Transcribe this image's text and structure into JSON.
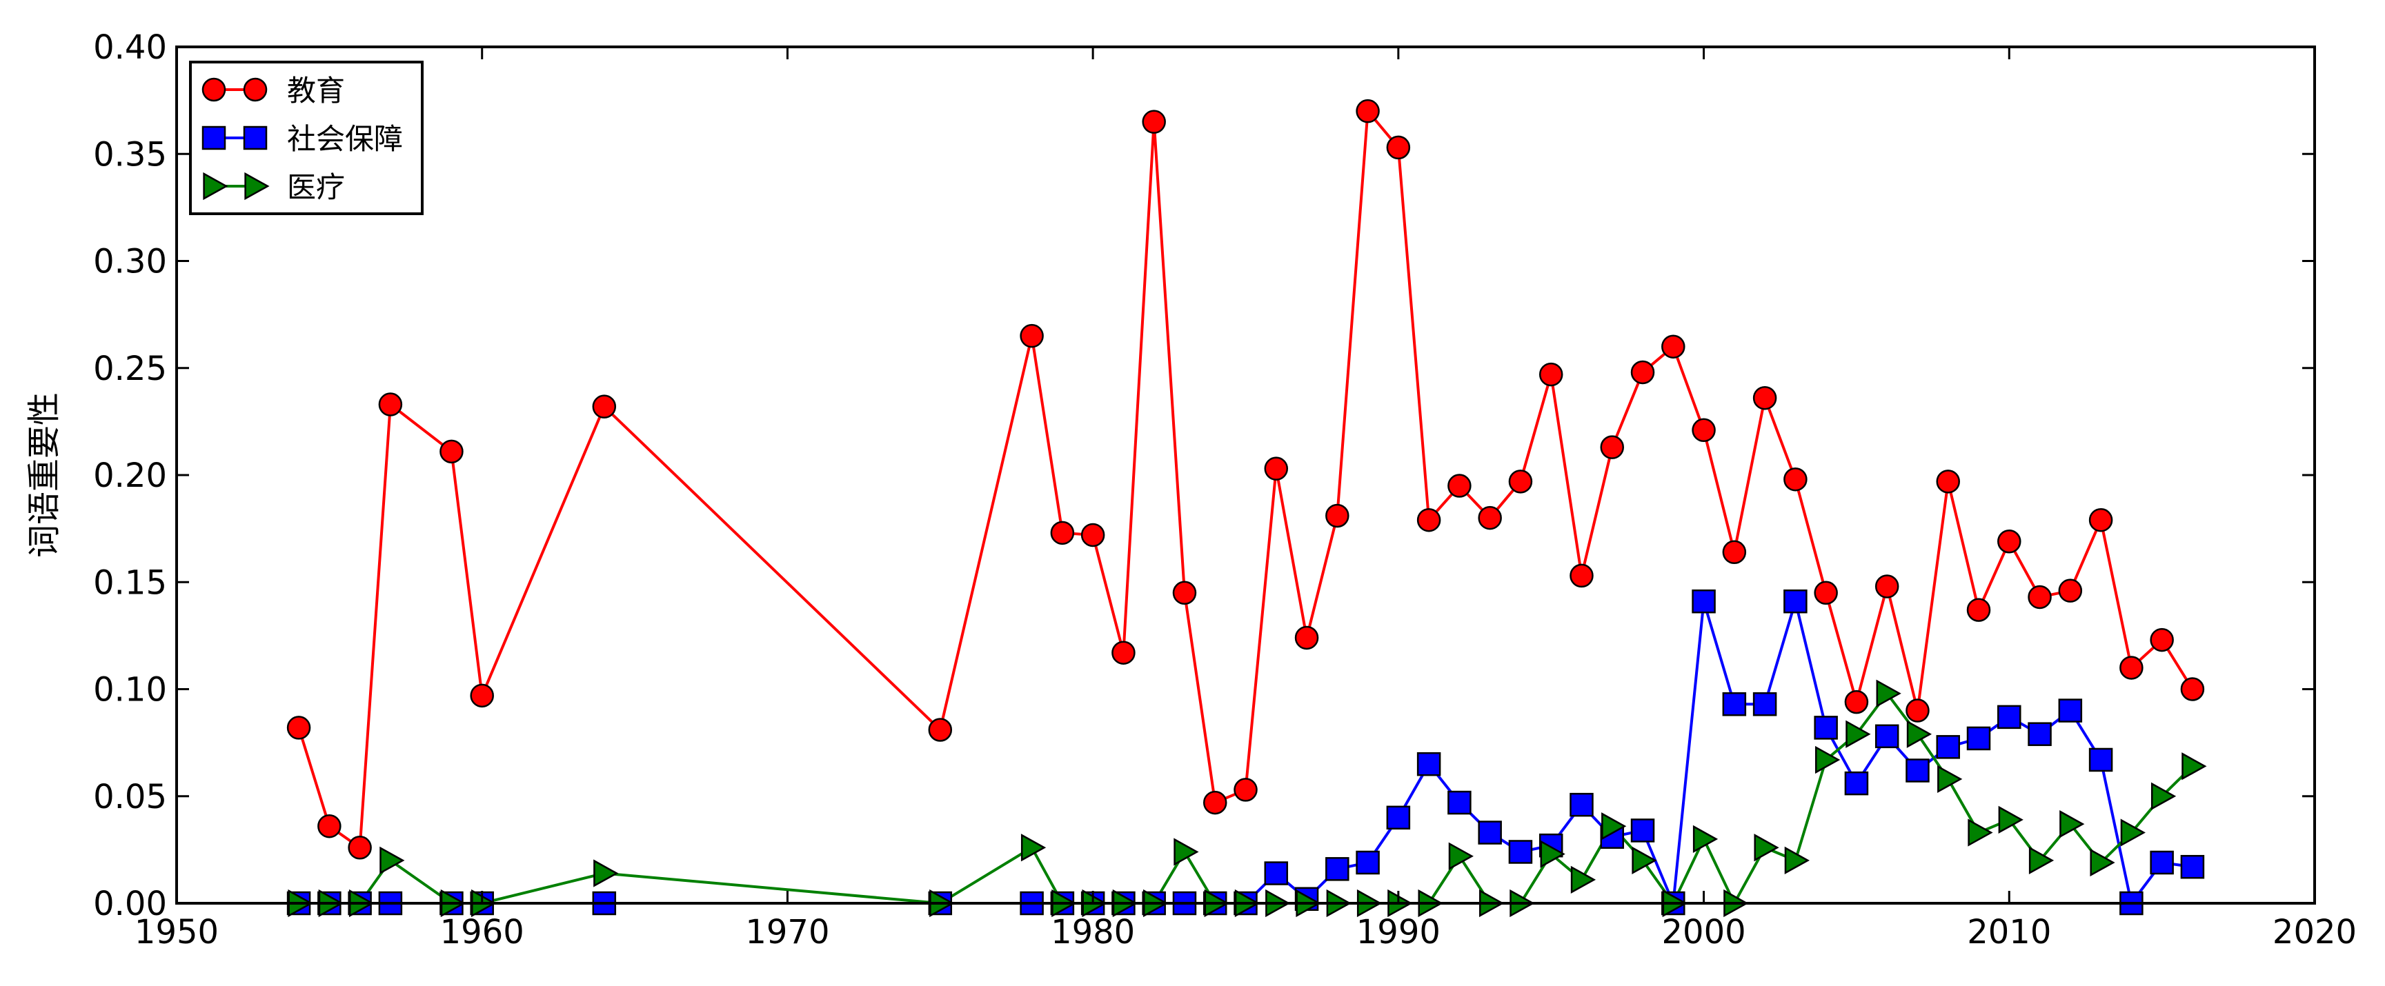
{
  "chart_data": {
    "type": "line",
    "title": "",
    "xlabel": "",
    "ylabel": "词语重要性",
    "xlim": [
      1950,
      2020
    ],
    "ylim": [
      0,
      0.4
    ],
    "x_ticks": [
      1950,
      1960,
      1970,
      1980,
      1990,
      2000,
      2010,
      2020
    ],
    "y_ticks": [
      0.0,
      0.05,
      0.1,
      0.15,
      0.2,
      0.25,
      0.3,
      0.35,
      0.4
    ],
    "grid": false,
    "legend_position": "top-left",
    "series": [
      {
        "name": "教育",
        "color": "#ff0000",
        "marker": "circle",
        "x": [
          1954,
          1955,
          1956,
          1957,
          1959,
          1960,
          1964,
          1975,
          1978,
          1979,
          1980,
          1981,
          1982,
          1983,
          1984,
          1985,
          1986,
          1987,
          1988,
          1989,
          1990,
          1991,
          1992,
          1993,
          1994,
          1995,
          1996,
          1997,
          1998,
          1999,
          2000,
          2001,
          2002,
          2003,
          2004,
          2005,
          2006,
          2007,
          2008,
          2009,
          2010,
          2011,
          2012,
          2013,
          2014,
          2015,
          2016
        ],
        "y": [
          0.082,
          0.036,
          0.026,
          0.233,
          0.211,
          0.097,
          0.232,
          0.081,
          0.265,
          0.173,
          0.172,
          0.117,
          0.365,
          0.145,
          0.047,
          0.053,
          0.203,
          0.124,
          0.181,
          0.37,
          0.353,
          0.179,
          0.195,
          0.18,
          0.197,
          0.247,
          0.153,
          0.213,
          0.248,
          0.26,
          0.221,
          0.164,
          0.236,
          0.198,
          0.145,
          0.094,
          0.148,
          0.09,
          0.197,
          0.137,
          0.169,
          0.143,
          0.146,
          0.179,
          0.11,
          0.123,
          0.1
        ]
      },
      {
        "name": "社会保障",
        "color": "#0000ff",
        "marker": "square",
        "x": [
          1954,
          1955,
          1956,
          1957,
          1959,
          1960,
          1964,
          1975,
          1978,
          1979,
          1980,
          1981,
          1982,
          1983,
          1984,
          1985,
          1986,
          1987,
          1988,
          1989,
          1990,
          1991,
          1992,
          1993,
          1994,
          1995,
          1996,
          1997,
          1998,
          1999,
          2000,
          2001,
          2002,
          2003,
          2004,
          2005,
          2006,
          2007,
          2008,
          2009,
          2010,
          2011,
          2012,
          2013,
          2014,
          2015,
          2016
        ],
        "y": [
          0,
          0,
          0,
          0,
          0,
          0,
          0,
          0,
          0,
          0,
          0,
          0,
          0,
          0,
          0,
          0,
          0.014,
          0.002,
          0.016,
          0.019,
          0.04,
          0.065,
          0.047,
          0.033,
          0.024,
          0.027,
          0.046,
          0.031,
          0.034,
          0.0,
          0.141,
          0.093,
          0.093,
          0.141,
          0.082,
          0.056,
          0.078,
          0.062,
          0.073,
          0.077,
          0.087,
          0.079,
          0.09,
          0.067,
          0.0,
          0.019,
          0.017
        ]
      },
      {
        "name": "医疗",
        "color": "#008000",
        "marker": "triangle-right",
        "x": [
          1954,
          1955,
          1956,
          1957,
          1959,
          1960,
          1964,
          1975,
          1978,
          1979,
          1980,
          1981,
          1982,
          1983,
          1984,
          1985,
          1986,
          1987,
          1988,
          1989,
          1990,
          1991,
          1992,
          1993,
          1994,
          1995,
          1996,
          1997,
          1998,
          1999,
          2000,
          2001,
          2002,
          2003,
          2004,
          2005,
          2006,
          2007,
          2008,
          2009,
          2010,
          2011,
          2012,
          2013,
          2014,
          2015,
          2016
        ],
        "y": [
          0,
          0,
          0,
          0.02,
          0,
          0,
          0.014,
          0,
          0.026,
          0,
          0,
          0,
          0,
          0.024,
          0,
          0,
          0,
          0,
          0,
          0,
          0,
          0,
          0.022,
          0,
          0,
          0.023,
          0.011,
          0.036,
          0.02,
          0,
          0.03,
          0,
          0.026,
          0.02,
          0.067,
          0.079,
          0.098,
          0.079,
          0.058,
          0.033,
          0.039,
          0.02,
          0.037,
          0.019,
          0.033,
          0.05,
          0.064
        ]
      }
    ]
  }
}
